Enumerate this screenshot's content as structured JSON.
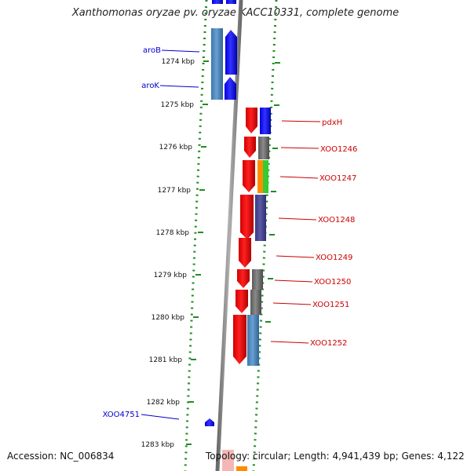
{
  "title": "Xanthomonas oryzae pv. oryzae KACC10331, complete genome",
  "accession": "Accession: NC_006834",
  "topology": "Topology: circular; Length: 4,941,439 bp; Genes: 4,122",
  "ticks": [
    "1274 kbp",
    "1275 kbp",
    "1276 kbp",
    "1277 kbp",
    "1278 kbp",
    "1279 kbp",
    "1280 kbp",
    "1281 kbp",
    "1282 kbp",
    "1283 kbp"
  ],
  "left_genes": [
    "aroB",
    "aroK",
    "XOO4751"
  ],
  "right_genes": [
    "pdxH",
    "XOO1246",
    "XOO1247",
    "XOO1248",
    "XOO1249",
    "XOO1250",
    "XOO1251",
    "XOO1252"
  ],
  "colors": {
    "blue_label": "#0000cc",
    "red_label": "#cc0000",
    "dotted_track": "#228b22",
    "axis": "#888888"
  }
}
